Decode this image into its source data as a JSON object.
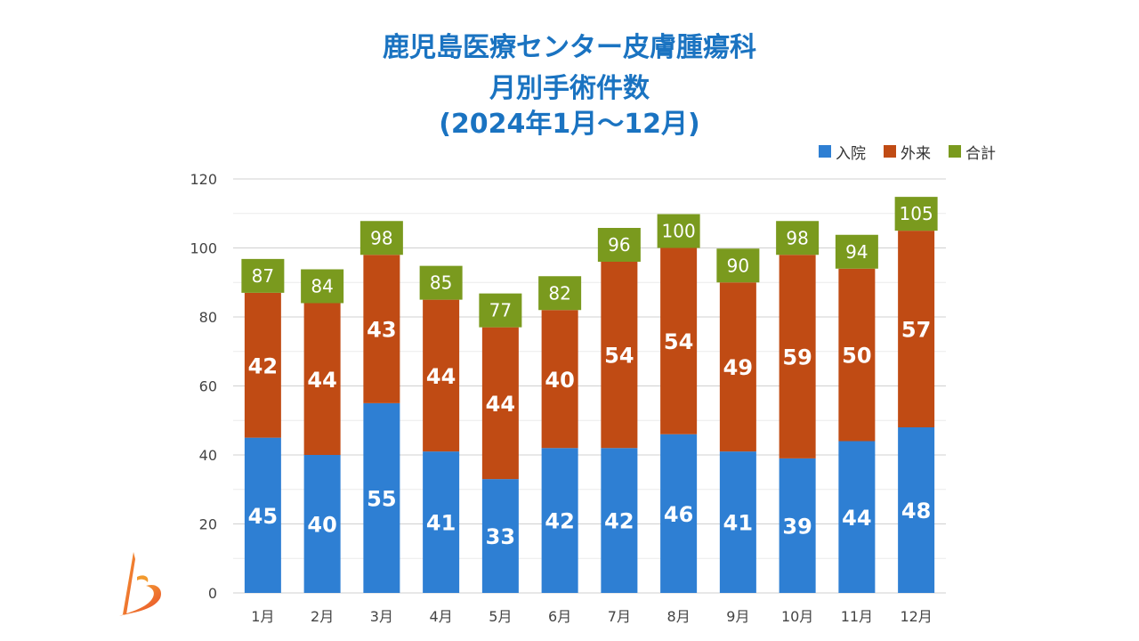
{
  "title": {
    "line1": "鹿児島医療センター皮膚腫瘍科",
    "line2": "月別手術件数",
    "line3": "(2024年1月〜12月)"
  },
  "colors": {
    "inpatient": "#2e7fd3",
    "outpatient": "#c04b14",
    "total": "#7a9a1e",
    "title": "#1a73c1",
    "grid": "#d9d9d9"
  },
  "legend": [
    {
      "label": "入院",
      "color": "#2e7fd3"
    },
    {
      "label": "外来",
      "color": "#c04b14"
    },
    {
      "label": "合計",
      "color": "#7a9a1e"
    }
  ],
  "chart_data": {
    "type": "bar",
    "stacked": true,
    "categories": [
      "1月",
      "2月",
      "3月",
      "4月",
      "5月",
      "6月",
      "7月",
      "8月",
      "9月",
      "10月",
      "11月",
      "12月"
    ],
    "series": [
      {
        "name": "入院",
        "values": [
          45,
          40,
          55,
          41,
          33,
          42,
          42,
          46,
          41,
          39,
          44,
          48
        ]
      },
      {
        "name": "外来",
        "values": [
          42,
          44,
          43,
          44,
          44,
          40,
          54,
          54,
          49,
          59,
          50,
          57
        ]
      }
    ],
    "totals": [
      87,
      84,
      98,
      85,
      77,
      82,
      96,
      100,
      90,
      98,
      94,
      105
    ],
    "yticks": [
      0,
      20,
      40,
      60,
      80,
      100,
      120
    ],
    "ylim": [
      0,
      120
    ],
    "grid": true,
    "legend_position": "top-right"
  }
}
